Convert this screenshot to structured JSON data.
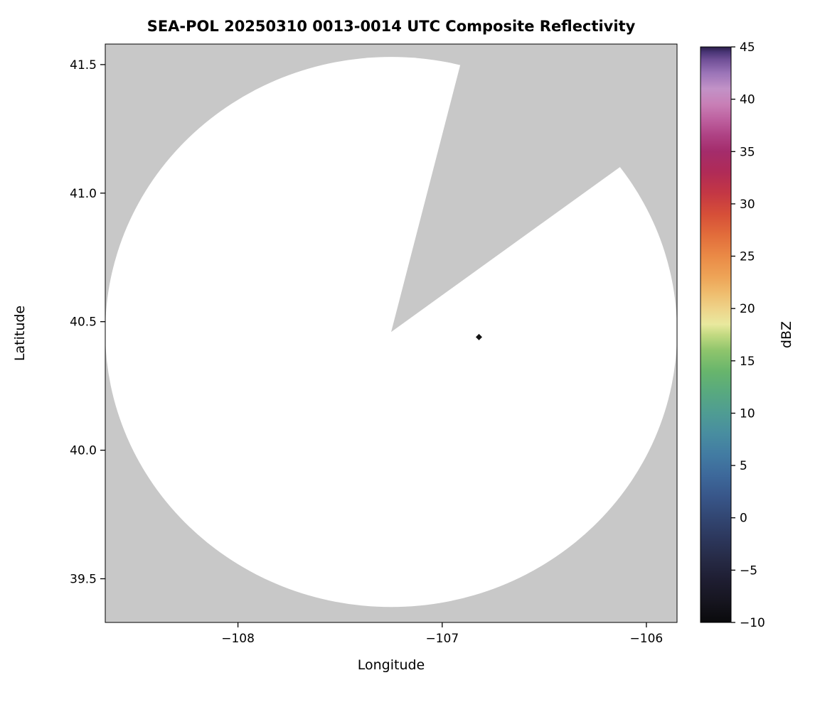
{
  "chart_data": {
    "type": "heatmap",
    "subtype": "radar-ppi-composite-reflectivity",
    "title": "SEA-POL 20250310 0013-0014 UTC Composite Reflectivity",
    "xlabel": "Longitude",
    "ylabel": "Latitude",
    "xlim": [
      -108.65,
      -105.85
    ],
    "ylim": [
      39.33,
      41.58
    ],
    "x_ticks": [
      -108,
      -107,
      -106
    ],
    "x_tick_labels": [
      "−108",
      "−107",
      "−106"
    ],
    "y_ticks": [
      39.5,
      40.0,
      40.5,
      41.0,
      41.5
    ],
    "y_tick_labels": [
      "39.5",
      "40.0",
      "40.5",
      "41.0",
      "41.5"
    ],
    "grid": false,
    "background_nodata_color": "#c8c8c8",
    "coverage_color": "#ffffff",
    "radar": {
      "center_lon": -107.25,
      "center_lat": 40.46,
      "radius_lon_deg": 1.4,
      "radius_lat_deg": 1.07,
      "blocked_sector_azimuth_deg": [
        14.5,
        54.2
      ]
    },
    "echoes": [
      {
        "lon": -106.82,
        "lat": 40.44,
        "shape": "diamond",
        "color": "#141414"
      }
    ],
    "colorbar": {
      "label": "dBZ",
      "min": -10,
      "max": 45,
      "ticks": [
        45,
        40,
        35,
        30,
        25,
        20,
        15,
        10,
        5,
        0,
        -5,
        -10
      ],
      "tick_labels": [
        "45",
        "40",
        "35",
        "30",
        "25",
        "20",
        "15",
        "10",
        "5",
        "0",
        "−5",
        "−10"
      ],
      "stops": [
        {
          "v": -10,
          "c": "#0a0a0c"
        },
        {
          "v": -8,
          "c": "#16151f"
        },
        {
          "v": -6,
          "c": "#1e1d31"
        },
        {
          "v": -4,
          "c": "#262a45"
        },
        {
          "v": -2,
          "c": "#2c375c"
        },
        {
          "v": 0,
          "c": "#324672"
        },
        {
          "v": 2,
          "c": "#385689"
        },
        {
          "v": 4,
          "c": "#3d689a"
        },
        {
          "v": 6,
          "c": "#427ba2"
        },
        {
          "v": 8,
          "c": "#488da0"
        },
        {
          "v": 10,
          "c": "#4f9c93"
        },
        {
          "v": 12,
          "c": "#58a97f"
        },
        {
          "v": 14,
          "c": "#68b56c"
        },
        {
          "v": 16,
          "c": "#8fc56c"
        },
        {
          "v": 17.5,
          "c": "#c3da82"
        },
        {
          "v": 18.5,
          "c": "#e9e99e"
        },
        {
          "v": 20,
          "c": "#eed389"
        },
        {
          "v": 21.5,
          "c": "#efbc6d"
        },
        {
          "v": 23,
          "c": "#eea457"
        },
        {
          "v": 25,
          "c": "#ea8a46"
        },
        {
          "v": 27,
          "c": "#e26d3b"
        },
        {
          "v": 29,
          "c": "#d64f38"
        },
        {
          "v": 31,
          "c": "#c43744"
        },
        {
          "v": 33,
          "c": "#b02b57"
        },
        {
          "v": 35,
          "c": "#a42c6b"
        },
        {
          "v": 36.5,
          "c": "#ae4183"
        },
        {
          "v": 38,
          "c": "#bd5f9e"
        },
        {
          "v": 39.5,
          "c": "#c87fb6"
        },
        {
          "v": 41,
          "c": "#c292c7"
        },
        {
          "v": 42.5,
          "c": "#9b74b8"
        },
        {
          "v": 43.8,
          "c": "#6f4f96"
        },
        {
          "v": 44.5,
          "c": "#4a3677"
        },
        {
          "v": 45,
          "c": "#2a1e49"
        }
      ]
    }
  }
}
